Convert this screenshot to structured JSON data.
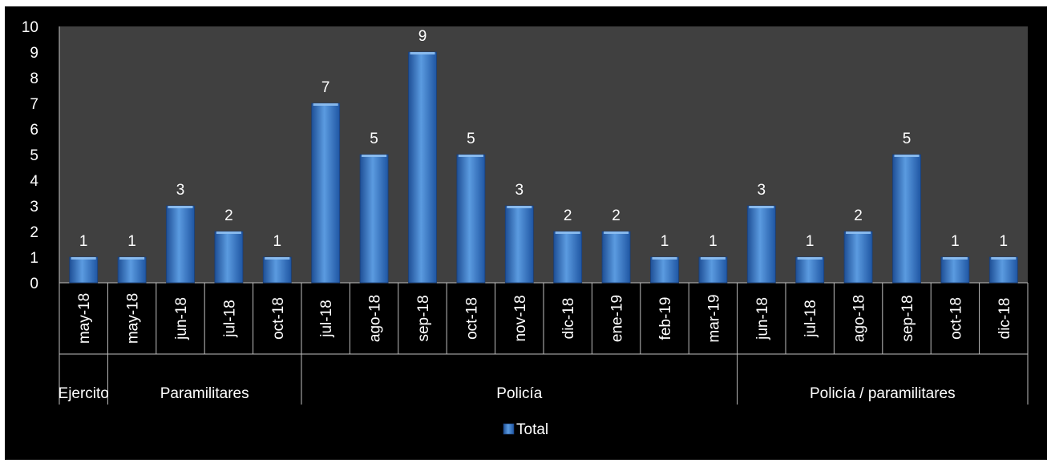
{
  "chart_data": {
    "type": "bar",
    "groups": [
      {
        "label": "Ejercito",
        "categories": [
          "may-18"
        ],
        "values": [
          1
        ]
      },
      {
        "label": "Paramilitares",
        "categories": [
          "may-18",
          "jun-18",
          "jul-18",
          "oct-18"
        ],
        "values": [
          1,
          3,
          2,
          1
        ]
      },
      {
        "label": "Policía",
        "categories": [
          "jul-18",
          "ago-18",
          "sep-18",
          "oct-18",
          "nov-18",
          "dic-18",
          "ene-19",
          "feb-19",
          "mar-19"
        ],
        "values": [
          7,
          5,
          9,
          5,
          3,
          2,
          2,
          1,
          1
        ]
      },
      {
        "label": "Policía / paramilitares",
        "categories": [
          "jun-18",
          "jul-18",
          "ago-18",
          "sep-18",
          "oct-18",
          "dic-18"
        ],
        "values": [
          3,
          1,
          2,
          5,
          1,
          1
        ]
      }
    ],
    "series": [
      {
        "name": "Total"
      }
    ],
    "ylim": [
      0,
      10
    ],
    "yticks": [
      "0",
      "1",
      "2",
      "3",
      "4",
      "5",
      "6",
      "7",
      "8",
      "9",
      "10"
    ],
    "legend_position": "bottom",
    "colors": {
      "bar": "#2f6fc4",
      "bar_light": "#5b9be0",
      "plot_background": "#404040",
      "background": "#000000",
      "text": "#ffffff"
    }
  }
}
